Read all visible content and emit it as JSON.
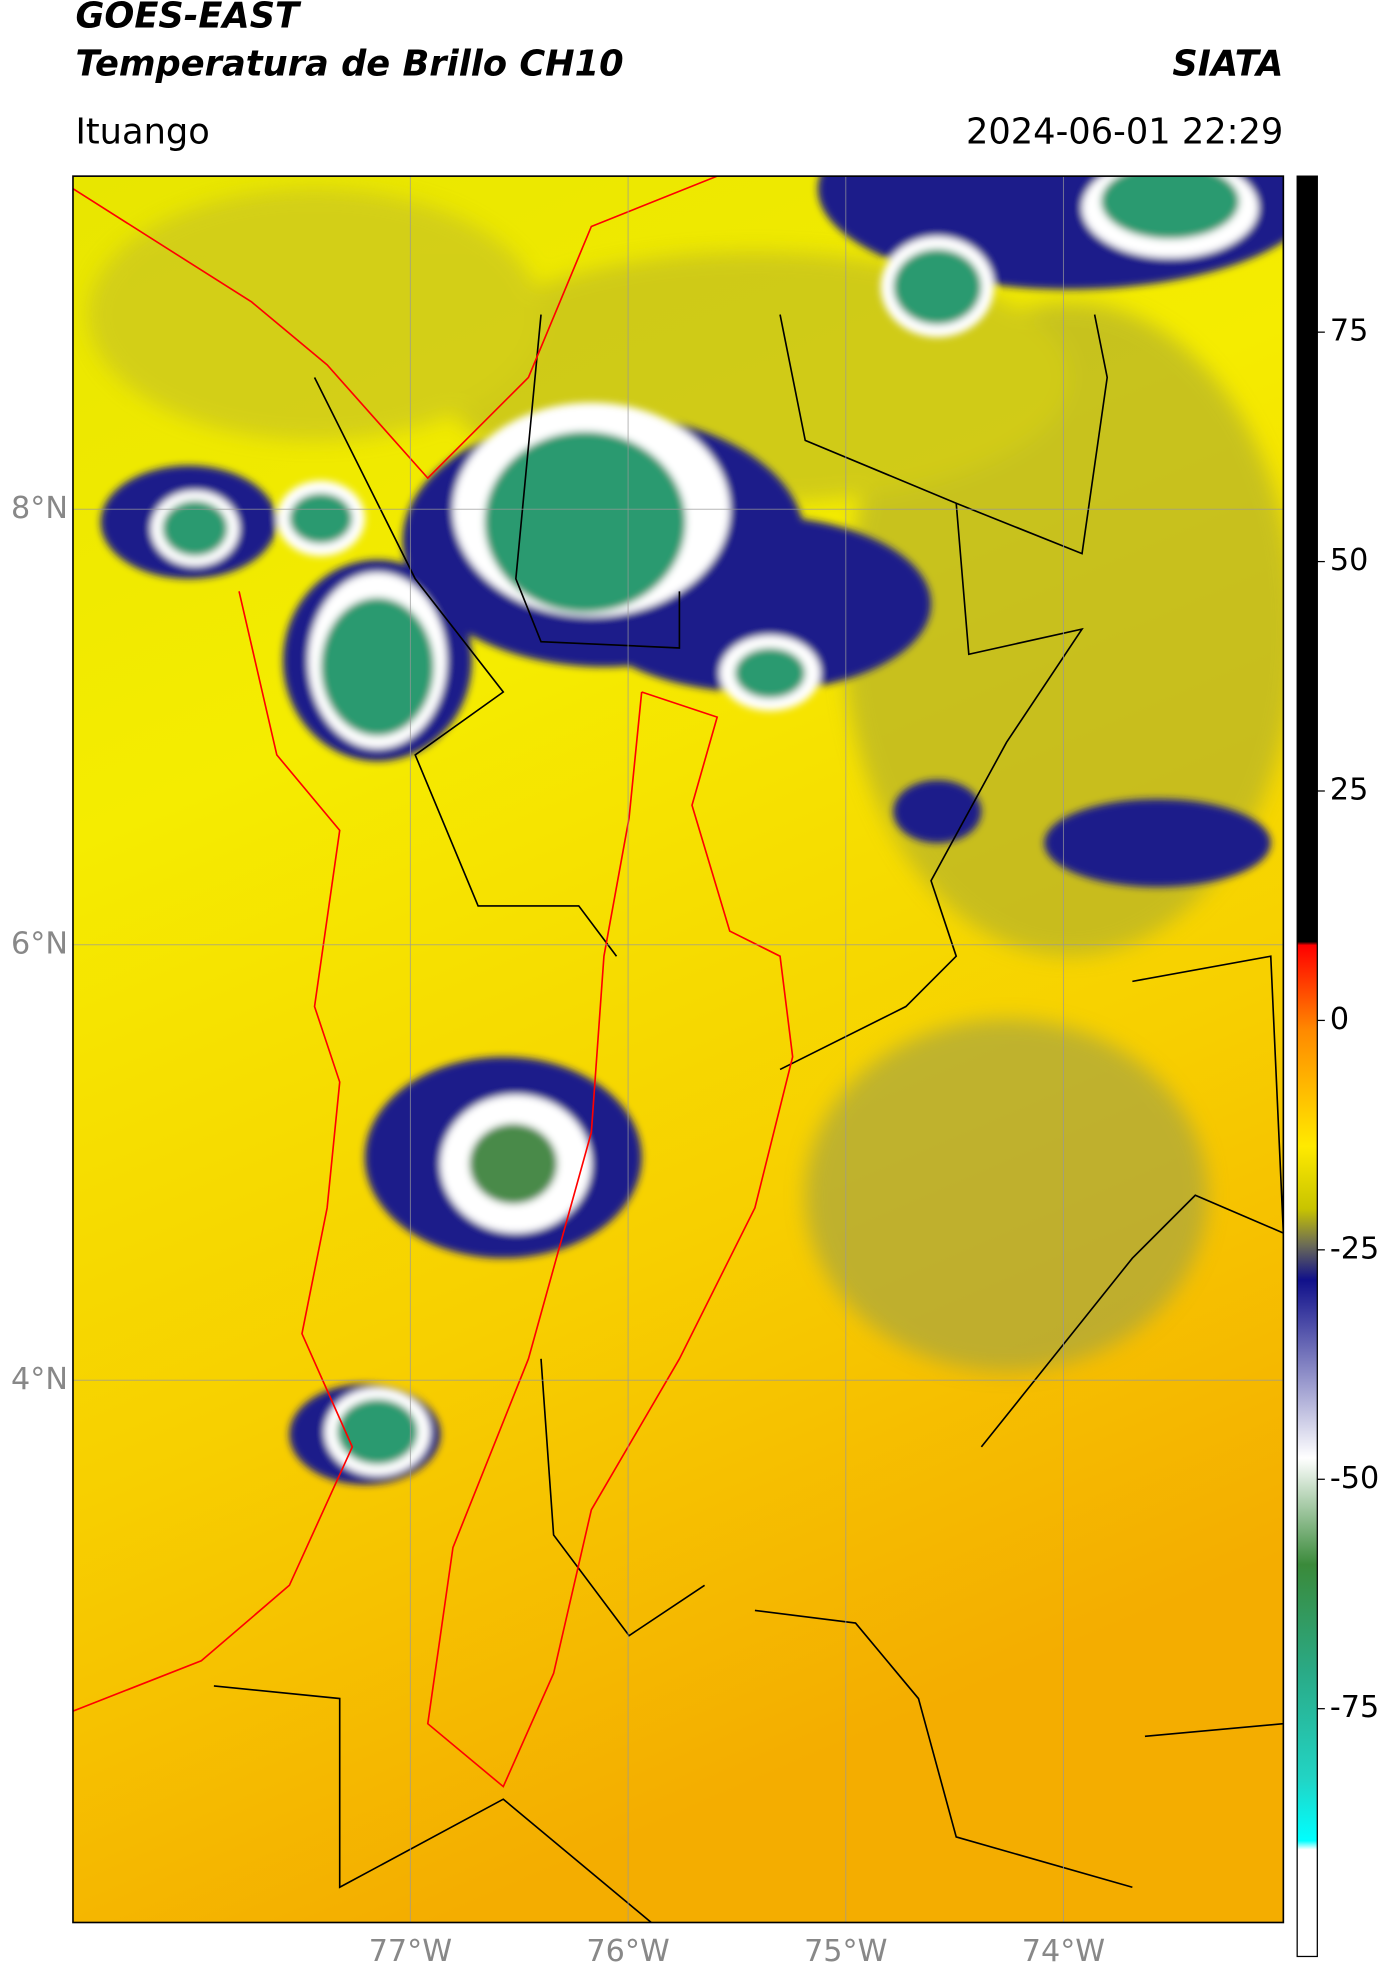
{
  "header": {
    "satellite": "GOES-EAST",
    "product": "Temperatura de Brillo CH10",
    "organization": "SIATA",
    "location": "Ituango",
    "datetime": "2024-06-01 22:29"
  },
  "map": {
    "lon_lim": [
      -78.55,
      -72.99
    ],
    "lat_lim": [
      1.51,
      9.53
    ],
    "lat_ticks": [
      {
        "value": 8,
        "label": "8°N"
      },
      {
        "value": 6,
        "label": "6°N"
      },
      {
        "value": 4,
        "label": "4°N"
      }
    ],
    "lon_ticks": [
      {
        "value": -77,
        "label": "77°W"
      },
      {
        "value": -76,
        "label": "76°W"
      },
      {
        "value": -75,
        "label": "75°W"
      },
      {
        "value": -74,
        "label": "74°W"
      }
    ],
    "grid": true
  },
  "colorbar": {
    "lim": [
      -102,
      92
    ],
    "ticks": [
      75,
      50,
      25,
      0,
      -25,
      -50,
      -75
    ]
  }
}
